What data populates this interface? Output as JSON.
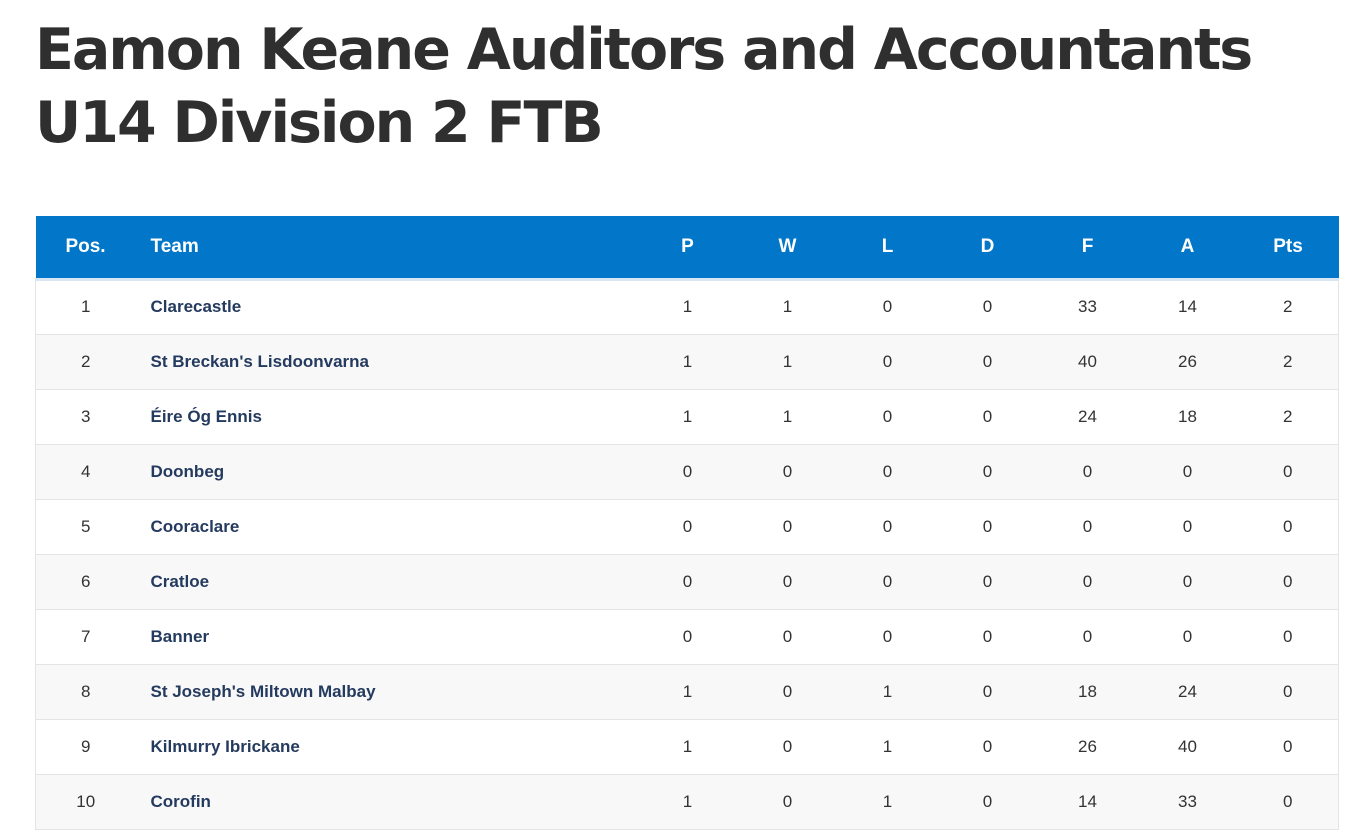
{
  "page": {
    "title": "Eamon Keane Auditors and Accountants U14 Division 2 FTB"
  },
  "table": {
    "headers": {
      "pos": "Pos.",
      "team": "Team",
      "p": "P",
      "w": "W",
      "l": "L",
      "d": "D",
      "f": "F",
      "a": "A",
      "pts": "Pts"
    },
    "rows": [
      {
        "pos": "1",
        "team": "Clarecastle",
        "p": "1",
        "w": "1",
        "l": "0",
        "d": "0",
        "f": "33",
        "a": "14",
        "pts": "2"
      },
      {
        "pos": "2",
        "team": "St Breckan's Lisdoonvarna",
        "p": "1",
        "w": "1",
        "l": "0",
        "d": "0",
        "f": "40",
        "a": "26",
        "pts": "2"
      },
      {
        "pos": "3",
        "team": "Éire Óg Ennis",
        "p": "1",
        "w": "1",
        "l": "0",
        "d": "0",
        "f": "24",
        "a": "18",
        "pts": "2"
      },
      {
        "pos": "4",
        "team": "Doonbeg",
        "p": "0",
        "w": "0",
        "l": "0",
        "d": "0",
        "f": "0",
        "a": "0",
        "pts": "0"
      },
      {
        "pos": "5",
        "team": "Cooraclare",
        "p": "0",
        "w": "0",
        "l": "0",
        "d": "0",
        "f": "0",
        "a": "0",
        "pts": "0"
      },
      {
        "pos": "6",
        "team": "Cratloe",
        "p": "0",
        "w": "0",
        "l": "0",
        "d": "0",
        "f": "0",
        "a": "0",
        "pts": "0"
      },
      {
        "pos": "7",
        "team": "Banner",
        "p": "0",
        "w": "0",
        "l": "0",
        "d": "0",
        "f": "0",
        "a": "0",
        "pts": "0"
      },
      {
        "pos": "8",
        "team": "St Joseph's Miltown Malbay",
        "p": "1",
        "w": "0",
        "l": "1",
        "d": "0",
        "f": "18",
        "a": "24",
        "pts": "0"
      },
      {
        "pos": "9",
        "team": "Kilmurry Ibrickane",
        "p": "1",
        "w": "0",
        "l": "1",
        "d": "0",
        "f": "26",
        "a": "40",
        "pts": "0"
      },
      {
        "pos": "10",
        "team": "Corofin",
        "p": "1",
        "w": "0",
        "l": "1",
        "d": "0",
        "f": "14",
        "a": "33",
        "pts": "0"
      }
    ]
  },
  "colors": {
    "header_bg": "#0277c9",
    "header_text": "#ffffff",
    "team_link": "#243a5e",
    "row_alt": "#f8f8f8"
  }
}
